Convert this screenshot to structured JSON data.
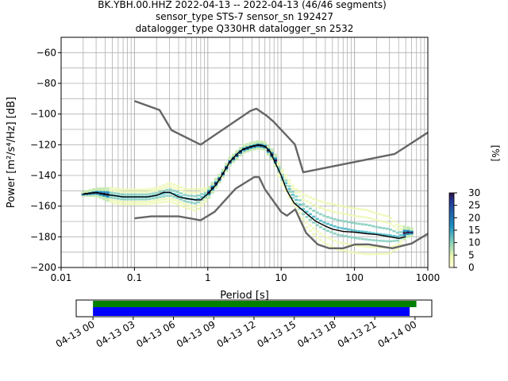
{
  "header": {
    "line1": "BK.YBH.00.HHZ   2022-04-13 -- 2022-04-13  (46/46 segments)",
    "line2": "sensor_type STS-7 sensor_sn 192427",
    "line3": "datalogger_type Q330HR datalogger_sn 2532"
  },
  "chart_data": [
    {
      "type": "heatmap",
      "title": "",
      "xlabel": "Period [s]",
      "ylabel": "Power [m²/s⁴/Hz] [dB]",
      "xscale": "log",
      "xlim": [
        0.01,
        1000
      ],
      "ylim": [
        -200,
        -50
      ],
      "x_ticks": [
        "0.01",
        "0.1",
        "1",
        "10",
        "100",
        "1000"
      ],
      "y_ticks": [
        "−200",
        "−180",
        "−160",
        "−140",
        "−120",
        "−100",
        "−80",
        "−60"
      ],
      "grid": true,
      "colormap": "green-yellow (CQT)",
      "colorbar": {
        "label": "[%]",
        "range": [
          0,
          30
        ],
        "ticks": [
          "0",
          "5",
          "10",
          "15",
          "20",
          "25",
          "30"
        ]
      },
      "mean_curve": {
        "color": "#000000",
        "period": [
          0.02,
          0.025,
          0.03,
          0.04,
          0.05,
          0.07,
          0.1,
          0.15,
          0.2,
          0.25,
          0.3,
          0.4,
          0.5,
          0.7,
          0.8,
          1.0,
          1.3,
          1.6,
          2,
          2.5,
          3,
          4,
          5,
          6,
          7,
          8,
          10,
          12,
          15,
          20,
          25,
          30,
          40,
          50,
          70,
          100,
          150,
          200,
          300,
          400,
          500
        ],
        "power": [
          -152,
          -151.5,
          -151,
          -152.5,
          -153,
          -154,
          -154,
          -154,
          -153,
          -151,
          -151,
          -154,
          -155,
          -156,
          -156,
          -152,
          -146,
          -139,
          -131,
          -126,
          -123,
          -121,
          -120,
          -121,
          -124,
          -130,
          -140,
          -150,
          -158,
          -163,
          -167,
          -170,
          -173,
          -175,
          -176.5,
          -177,
          -178,
          -178.5,
          -180,
          -181,
          -180
        ]
      },
      "psd_density": {
        "period": [
          0.02,
          0.03,
          0.05,
          0.07,
          0.1,
          0.15,
          0.2,
          0.3,
          0.4,
          0.5,
          0.7,
          1.0,
          1.5,
          2,
          3,
          4,
          5,
          6,
          8,
          10,
          15,
          20,
          30,
          40,
          60,
          80,
          100,
          150,
          200,
          300,
          400,
          500,
          600
        ],
        "center_db": [
          -152,
          -151,
          -153,
          -154,
          -154,
          -154,
          -153,
          -151,
          -153,
          -155,
          -156,
          -152,
          -141,
          -131,
          -123,
          -121,
          -120,
          -121,
          -128,
          -140,
          -154,
          -162,
          -168,
          -171,
          -174,
          -175,
          -176,
          -177,
          -178,
          -179,
          -180,
          -177,
          -177
        ],
        "spread_db": [
          1,
          2,
          4,
          4,
          4,
          4,
          4,
          5,
          5,
          5,
          6,
          3,
          2,
          2,
          2,
          2,
          2,
          2,
          3,
          4,
          5,
          8,
          10,
          11,
          12,
          12,
          12,
          12,
          11,
          10,
          6,
          3,
          2
        ]
      },
      "noise_models": {
        "color": "#666666",
        "NHNM": {
          "period": [
            0.1,
            0.22,
            0.32,
            0.8,
            3.8,
            4.6,
            6.3,
            7.9,
            15.4,
            20,
            354.8,
            1000
          ],
          "power": [
            -91.5,
            -97.4,
            -110.5,
            -120,
            -98,
            -96.5,
            -101,
            -105,
            -119.8,
            -138,
            -126,
            -112
          ]
        },
        "NLNM": {
          "period": [
            0.1,
            0.17,
            0.4,
            0.8,
            1.24,
            2.4,
            4.3,
            5,
            6,
            10,
            12,
            15.6,
            21.9,
            31.6,
            45,
            70,
            101,
            154,
            328,
            600,
            1000
          ],
          "power": [
            -168,
            -166.7,
            -166.7,
            -169.2,
            -163.7,
            -148.6,
            -141.1,
            -141.1,
            -149,
            -163.8,
            -166.2,
            -162.1,
            -177.5,
            -185,
            -187.5,
            -187.5,
            -185,
            -184.9,
            -187.5,
            -184.4,
            -178
          ]
        }
      }
    },
    {
      "type": "timeline",
      "title": "",
      "x_ticks": [
        "04-13 00",
        "04-13 03",
        "04-13 06",
        "04-13 09",
        "04-13 12",
        "04-13 15",
        "04-13 18",
        "04-13 21",
        "04-14 00"
      ],
      "x_range_hours": [
        -1.25,
        25.25
      ],
      "data_coverage_hours": {
        "color": "#008000",
        "start": 0,
        "end": 24.1
      },
      "psd_coverage_hours": {
        "color": "#0000ff",
        "start": 0,
        "end": 23.6
      }
    }
  ]
}
